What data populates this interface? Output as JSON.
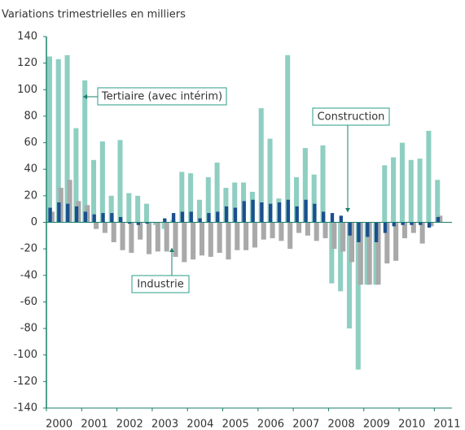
{
  "chart_data": {
    "type": "bar",
    "subtitle": "Variations trimestrielles en milliers",
    "x": [
      2000,
      2000.25,
      2000.5,
      2000.75,
      2001,
      2001.25,
      2001.5,
      2001.75,
      2002,
      2002.25,
      2002.5,
      2002.75,
      2003,
      2003.25,
      2003.5,
      2003.75,
      2004,
      2004.25,
      2004.5,
      2004.75,
      2005,
      2005.25,
      2005.5,
      2005.75,
      2006,
      2006.25,
      2006.5,
      2006.75,
      2007,
      2007.25,
      2007.5,
      2007.75,
      2008,
      2008.25,
      2008.5,
      2008.75,
      2009,
      2009.25,
      2009.5,
      2009.75,
      2010,
      2010.25,
      2010.5,
      2010.75,
      2011
    ],
    "series": [
      {
        "name": "Tertiaire (avec intérim)",
        "color": "#8fcfc2",
        "values": [
          125,
          123,
          126,
          71,
          107,
          47,
          61,
          20,
          62,
          22,
          20,
          14,
          -2,
          -5,
          2,
          38,
          37,
          17,
          34,
          45,
          26,
          30,
          30,
          23,
          86,
          63,
          18,
          126,
          34,
          56,
          36,
          58,
          -46,
          -52,
          -80,
          -111,
          -47,
          -47,
          43,
          49,
          60,
          47,
          48,
          69,
          32
        ]
      },
      {
        "name": "Industrie",
        "color": "#a9a9a9",
        "values": [
          8,
          26,
          32,
          16,
          13,
          -5,
          -8,
          -15,
          -21,
          -23,
          -13,
          -24,
          -22,
          -22,
          -26,
          -30,
          -28,
          -25,
          -26,
          -23,
          -28,
          -21,
          -21,
          -19,
          -13,
          -12,
          -14,
          -20,
          -8,
          -10,
          -14,
          -12,
          -20,
          -22,
          -30,
          -47,
          -47,
          -47,
          -31,
          -29,
          -12,
          -8,
          -16,
          -3,
          5
        ]
      },
      {
        "name": "Construction",
        "color": "#1b4f8e",
        "values": [
          11,
          15,
          14,
          12,
          8,
          6,
          7,
          7,
          4,
          -1,
          -2,
          -1,
          0,
          3,
          7,
          8,
          8,
          3,
          7,
          8,
          12,
          11,
          16,
          17,
          15,
          14,
          15,
          17,
          12,
          17,
          14,
          8,
          7,
          5,
          -10,
          -15,
          -11,
          -15,
          -8,
          -3,
          -2,
          -2,
          -2,
          -4,
          4
        ]
      }
    ],
    "xlim": [
      2000,
      2011.5
    ],
    "xticks": [
      {
        "value": 2000.5,
        "label": "2000"
      },
      {
        "value": 2001.5,
        "label": "2001"
      },
      {
        "value": 2002.5,
        "label": "2002"
      },
      {
        "value": 2003.5,
        "label": "2003"
      },
      {
        "value": 2004.5,
        "label": "2004"
      },
      {
        "value": 2005.5,
        "label": "2005"
      },
      {
        "value": 2006.5,
        "label": "2006"
      },
      {
        "value": 2007.5,
        "label": "2007"
      },
      {
        "value": 2008.5,
        "label": "2008"
      },
      {
        "value": 2009.5,
        "label": "2009"
      },
      {
        "value": 2010.5,
        "label": "2010"
      },
      {
        "value": 2011.5,
        "label": "2011"
      }
    ],
    "ylim": [
      -140,
      140
    ],
    "yticks": [
      -140,
      -120,
      -100,
      -80,
      -60,
      -40,
      -20,
      0,
      20,
      40,
      60,
      80,
      100,
      120,
      140
    ]
  }
}
